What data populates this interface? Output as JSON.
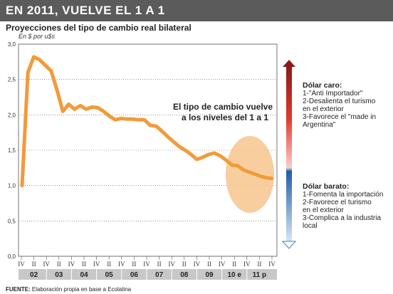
{
  "header": {
    "title": "EN 2011, VUELVE EL 1 A 1",
    "subtitle": "Proyecciones del tipo de cambio real bilateral",
    "unit": "En $ por u$s"
  },
  "annotation": {
    "line1": "El tipo de cambio vuelve",
    "line2": "a los niveles del 1 a 1"
  },
  "legend": {
    "caro": {
      "heading": "Dólar caro:",
      "items": [
        "1-\"Anti Importador\"",
        "2-Desalienta el turismo",
        "en el exterior",
        "3-Favorece el \"made in",
        "Argentina\""
      ]
    },
    "barato": {
      "heading": "Dólar barato:",
      "items": [
        "1-Fomenta la importación",
        "2-Favorece el turismo",
        "en el exterior",
        "3-Complica a la industria",
        "local"
      ]
    },
    "colors": {
      "caro": "#8b1a1a",
      "barato": "#1f5fa8"
    }
  },
  "footer": {
    "label": "FUENTE:",
    "text": " Elaboración propia en base a Ecolatina"
  },
  "chart_data": {
    "type": "line",
    "yticks": [
      "3,0",
      "2,5",
      "2,0",
      "1,5",
      "1,0",
      "0,5",
      "0,0"
    ],
    "ylim": [
      0,
      3
    ],
    "quarter_labels": [
      "IV",
      "II",
      "IV",
      "II",
      "IV",
      "II",
      "IV",
      "II",
      "IV",
      "II",
      "IV",
      "II",
      "IV",
      "II",
      "IV",
      "II",
      "IV",
      "II",
      "IV",
      "II",
      "IV"
    ],
    "year_labels": [
      "02",
      "03",
      "04",
      "05",
      "06",
      "07",
      "08",
      "09",
      "10 e",
      "11 p"
    ],
    "line_color": "#f39a3a",
    "projection_color": "#f7c58e",
    "series": [
      {
        "solid": [
          1.0,
          2.6,
          2.82,
          2.78,
          2.7,
          2.62,
          2.35,
          2.05,
          2.15,
          2.08,
          2.13,
          2.08,
          2.11,
          2.1,
          2.05,
          1.98,
          1.93,
          1.95,
          1.94,
          1.94,
          1.93,
          1.93,
          1.85,
          1.84,
          1.77,
          1.69,
          1.62,
          1.55,
          1.5,
          1.44,
          1.37,
          1.4,
          1.44,
          1.46,
          1.42,
          1.36,
          1.29,
          1.28
        ],
        "dotted": [
          1.28,
          1.22,
          1.19,
          1.16,
          1.13,
          1.11,
          1.1
        ]
      }
    ]
  }
}
